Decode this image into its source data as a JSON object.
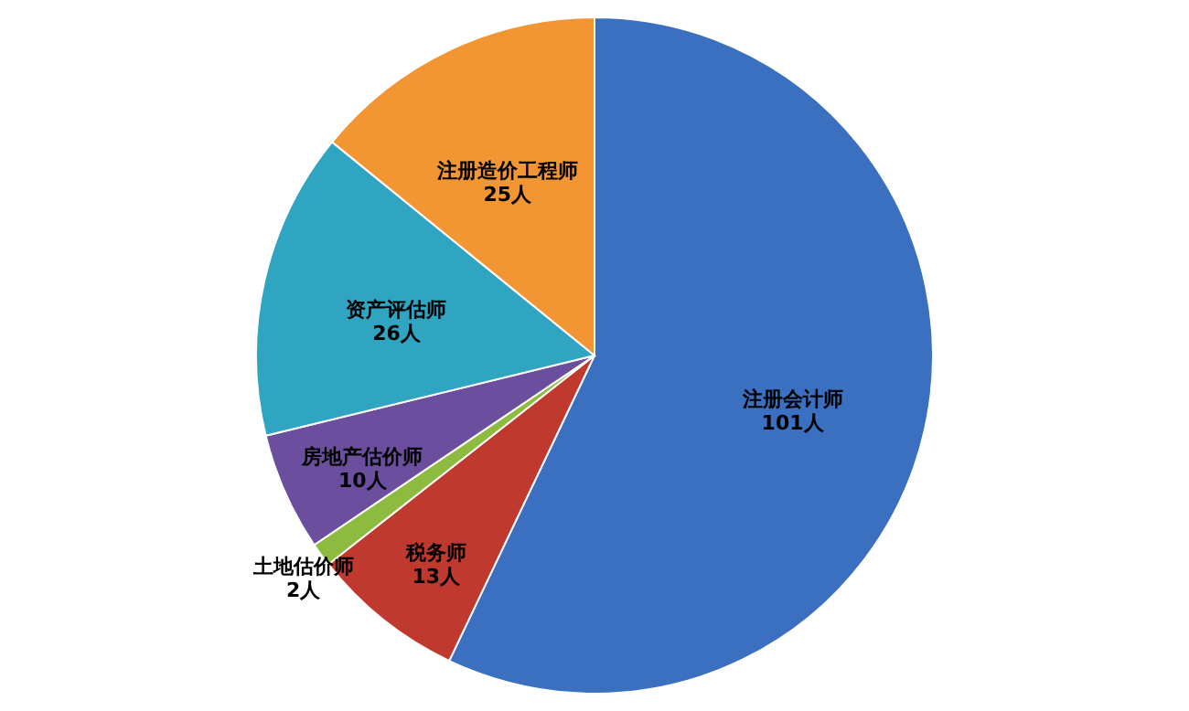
{
  "chart_data": {
    "type": "pie",
    "categories": [
      "注册会计师",
      "税务师",
      "土地估价师",
      "房地产估价师",
      "资产评估师",
      "注册造价工程师"
    ],
    "values": [
      101,
      13,
      2,
      10,
      26,
      25
    ],
    "value_labels": [
      "101人",
      "13人",
      "2人",
      "10人",
      "26人",
      "25人"
    ],
    "colors": [
      "#3b6fbf",
      "#c0392f",
      "#8dbb3f",
      "#6b4f9e",
      "#30a5c2",
      "#f29634"
    ]
  }
}
